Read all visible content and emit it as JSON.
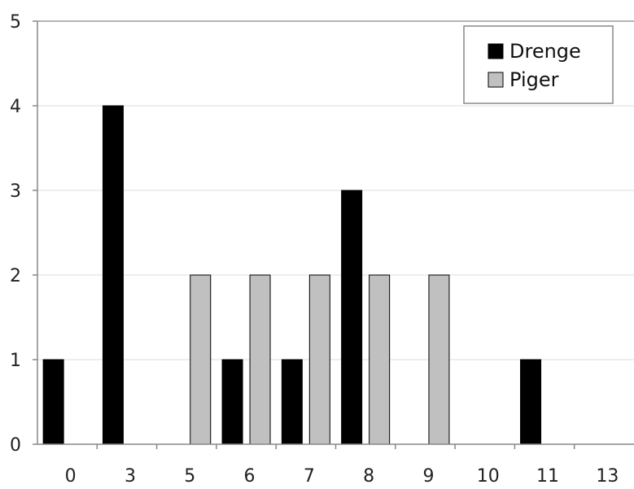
{
  "chart_data": {
    "type": "bar",
    "categories": [
      "0",
      "3",
      "5",
      "6",
      "7",
      "8",
      "9",
      "10",
      "11",
      "13"
    ],
    "series": [
      {
        "name": "Drenge",
        "color": "#000000",
        "values": [
          1,
          4,
          0,
          1,
          1,
          3,
          0,
          0,
          1,
          0
        ]
      },
      {
        "name": "Piger",
        "color": "#c0c0c0",
        "values": [
          0,
          0,
          2,
          2,
          2,
          2,
          2,
          0,
          0,
          0
        ]
      }
    ],
    "ylim": [
      0,
      5
    ],
    "yticks": [
      "0",
      "1",
      "2",
      "3",
      "4",
      "5"
    ],
    "grid": true,
    "legend_position": "top-right"
  }
}
